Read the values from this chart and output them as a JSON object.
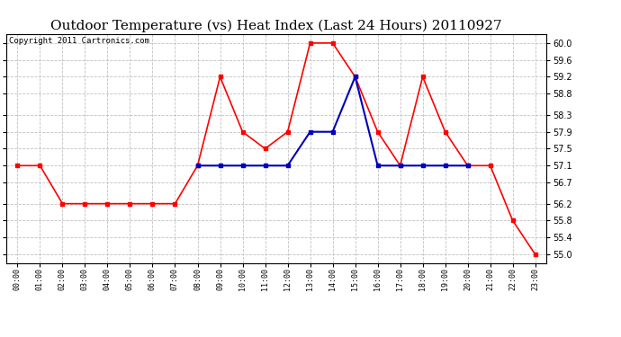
{
  "title": "Outdoor Temperature (vs) Heat Index (Last 24 Hours) 20110927",
  "copyright": "Copyright 2011 Cartronics.com",
  "x_labels": [
    "00:00",
    "01:00",
    "02:00",
    "03:00",
    "04:00",
    "05:00",
    "06:00",
    "07:00",
    "08:00",
    "09:00",
    "10:00",
    "11:00",
    "12:00",
    "13:00",
    "14:00",
    "15:00",
    "16:00",
    "17:00",
    "18:00",
    "19:00",
    "20:00",
    "21:00",
    "22:00",
    "23:00"
  ],
  "red_values": [
    57.1,
    57.1,
    56.2,
    56.2,
    56.2,
    56.2,
    56.2,
    56.2,
    57.1,
    59.2,
    57.9,
    57.5,
    57.9,
    60.0,
    60.0,
    59.2,
    57.9,
    57.1,
    59.2,
    57.9,
    57.1,
    57.1,
    55.8,
    55.0
  ],
  "blue_values": [
    null,
    null,
    null,
    null,
    null,
    null,
    null,
    null,
    57.1,
    57.1,
    57.1,
    57.1,
    57.1,
    57.9,
    57.9,
    59.2,
    57.1,
    57.1,
    57.1,
    57.1,
    57.1,
    null,
    null,
    null
  ],
  "red_color": "#ff0000",
  "blue_color": "#0000bb",
  "background_color": "#ffffff",
  "grid_color": "#bbbbbb",
  "ylim_min": 54.8,
  "ylim_max": 60.22,
  "yticks": [
    55.0,
    55.4,
    55.8,
    56.2,
    56.7,
    57.1,
    57.5,
    57.9,
    58.3,
    58.8,
    59.2,
    59.6,
    60.0
  ],
  "title_fontsize": 11,
  "copyright_fontsize": 6.5,
  "marker": "s",
  "markersize": 3.0,
  "linewidth_red": 1.2,
  "linewidth_blue": 1.5
}
